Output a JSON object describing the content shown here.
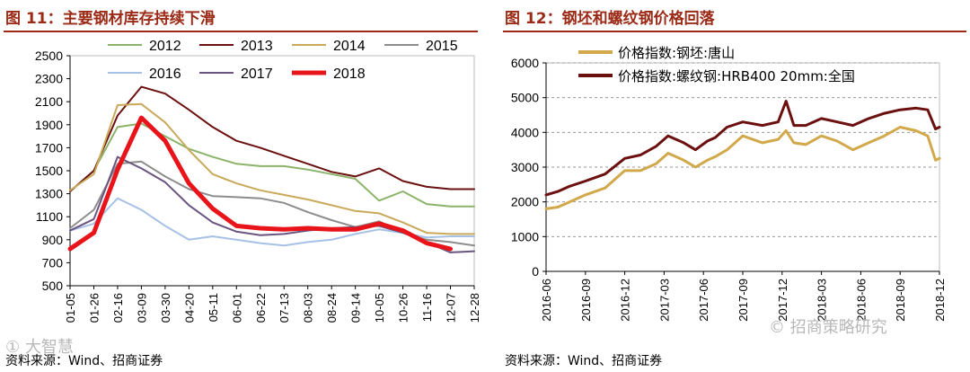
{
  "left": {
    "title": "图 11：主要钢材库存持续下滑",
    "source": "资料来源：Wind、招商证券",
    "watermark": "① 大智慧",
    "chart_data": {
      "type": "line",
      "title": "主要钢材库存持续下滑",
      "ylim": [
        500,
        2500
      ],
      "yticks": [
        500,
        700,
        900,
        1100,
        1300,
        1500,
        1700,
        1900,
        2100,
        2300,
        2500
      ],
      "xticks": [
        "01-05",
        "01-26",
        "02-16",
        "03-09",
        "03-30",
        "04-20",
        "05-11",
        "06-01",
        "06-22",
        "07-13",
        "08-03",
        "08-24",
        "09-14",
        "10-05",
        "10-26",
        "11-16",
        "12-07",
        "12-28"
      ],
      "legend_position": "top",
      "series": [
        {
          "name": "2012",
          "color": "#8cb36a",
          "width": 2,
          "values": [
            1320,
            1500,
            1880,
            1910,
            1800,
            1690,
            1620,
            1560,
            1540,
            1540,
            1510,
            1470,
            1430,
            1240,
            1320,
            1210,
            1190,
            1190
          ]
        },
        {
          "name": "2013",
          "color": "#6b0f0f",
          "width": 2,
          "values": [
            1320,
            1500,
            1980,
            2230,
            2170,
            2030,
            1880,
            1760,
            1700,
            1630,
            1560,
            1490,
            1450,
            1520,
            1410,
            1360,
            1340,
            1340
          ]
        },
        {
          "name": "2014",
          "color": "#c9a95a",
          "width": 2,
          "values": [
            1330,
            1470,
            2070,
            2080,
            1920,
            1680,
            1470,
            1390,
            1330,
            1290,
            1250,
            1200,
            1150,
            1130,
            1050,
            960,
            950,
            950
          ]
        },
        {
          "name": "2015",
          "color": "#8c8c8c",
          "width": 2,
          "values": [
            1000,
            1160,
            1560,
            1580,
            1450,
            1340,
            1280,
            1270,
            1260,
            1220,
            1140,
            1070,
            1010,
            1060,
            960,
            900,
            880,
            850
          ]
        },
        {
          "name": "2016",
          "color": "#a7c1e6",
          "width": 2,
          "values": [
            980,
            1040,
            1260,
            1160,
            1020,
            900,
            930,
            900,
            870,
            850,
            880,
            900,
            950,
            990,
            960,
            920,
            930,
            930
          ]
        },
        {
          "name": "2017",
          "color": "#6a5480",
          "width": 2,
          "values": [
            980,
            1080,
            1620,
            1520,
            1400,
            1200,
            1050,
            970,
            940,
            950,
            980,
            1000,
            1010,
            1020,
            960,
            880,
            790,
            800
          ]
        },
        {
          "name": "2018",
          "color": "#e8141a",
          "width": 5,
          "values": [
            820,
            960,
            1510,
            1960,
            1760,
            1390,
            1170,
            1020,
            1000,
            990,
            1000,
            990,
            990,
            1040,
            980,
            870,
            820,
            null
          ]
        }
      ]
    }
  },
  "right": {
    "title": "图 12：钢坯和螺纹钢价格回落",
    "source": "资料来源：Wind、招商证券",
    "watermark": "© 招商策略研究",
    "chart_data": {
      "type": "line",
      "title": "钢坯和螺纹钢价格回落",
      "ylim": [
        0,
        6000
      ],
      "yticks": [
        0,
        1000,
        2000,
        3000,
        4000,
        5000,
        6000
      ],
      "xticks": [
        "2016-06",
        "2016-09",
        "2016-12",
        "2017-03",
        "2017-06",
        "2017-09",
        "2017-12",
        "2018-03",
        "2018-06",
        "2018-09",
        "2018-12"
      ],
      "legend_position": "top-left",
      "series": [
        {
          "name": "价格指数:钢坯:唐山",
          "color": "#d2a94a",
          "width": 3,
          "x": [
            0,
            0.3,
            0.6,
            1.0,
            1.5,
            2.0,
            2.4,
            2.8,
            3.1,
            3.5,
            3.8,
            4.1,
            4.3,
            4.6,
            5.0,
            5.5,
            5.9,
            6.1,
            6.3,
            6.6,
            7.0,
            7.4,
            7.8,
            8.2,
            8.6,
            9.0,
            9.4,
            9.7,
            9.9,
            10.0
          ],
          "values": [
            1800,
            1850,
            2000,
            2200,
            2400,
            2900,
            2900,
            3100,
            3400,
            3200,
            3000,
            3200,
            3300,
            3500,
            3900,
            3700,
            3800,
            4050,
            3700,
            3650,
            3900,
            3750,
            3500,
            3700,
            3900,
            4150,
            4050,
            3900,
            3200,
            3250
          ]
        },
        {
          "name": "价格指数:螺纹钢:HRB400 20mm:全国",
          "color": "#6b0f0f",
          "width": 3,
          "x": [
            0,
            0.3,
            0.6,
            1.0,
            1.5,
            2.0,
            2.4,
            2.8,
            3.1,
            3.5,
            3.8,
            4.1,
            4.3,
            4.6,
            5.0,
            5.5,
            5.9,
            6.1,
            6.3,
            6.6,
            7.0,
            7.4,
            7.8,
            8.2,
            8.6,
            9.0,
            9.4,
            9.7,
            9.9,
            10.0
          ],
          "values": [
            2200,
            2300,
            2450,
            2600,
            2800,
            3250,
            3350,
            3600,
            3900,
            3700,
            3500,
            3750,
            3850,
            4150,
            4300,
            4200,
            4300,
            4900,
            4200,
            4200,
            4400,
            4300,
            4200,
            4400,
            4550,
            4650,
            4700,
            4650,
            4100,
            4150
          ]
        }
      ]
    }
  }
}
